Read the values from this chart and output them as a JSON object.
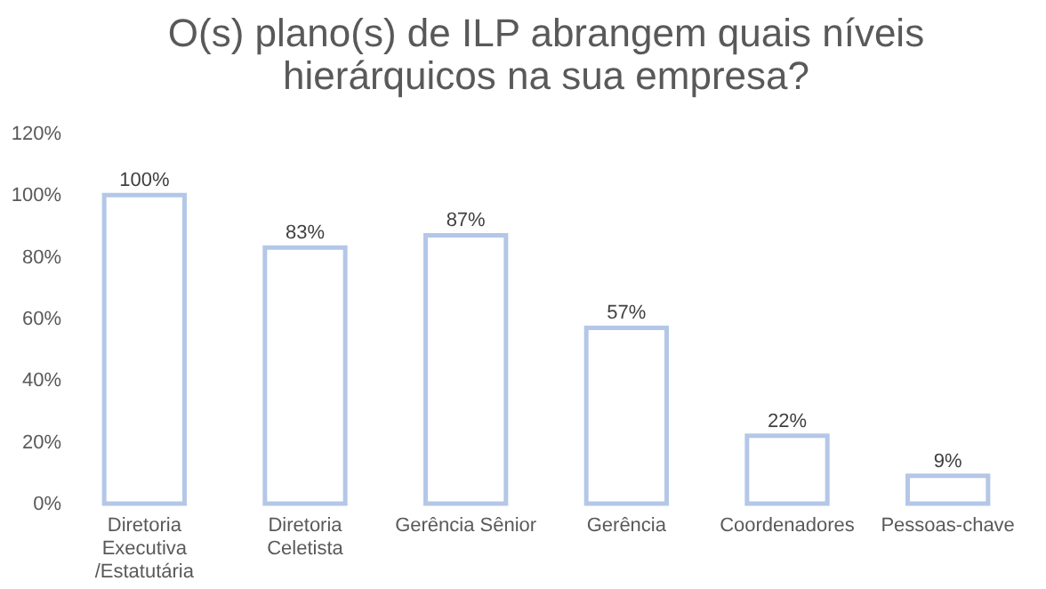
{
  "chart_data": {
    "type": "bar",
    "title": "O(s) plano(s) de ILP abrangem quais níveis hierárquicos na sua empresa?",
    "categories": [
      "Diretoria Executiva /Estatutária",
      "Diretoria Celetista",
      "Gerência Sênior",
      "Gerência",
      "Coordenadores",
      "Pessoas-chave"
    ],
    "values": [
      100,
      83,
      87,
      57,
      22,
      9
    ],
    "color": "#b4c7e7",
    "ylim": [
      0,
      120
    ],
    "yticks": [
      {
        "value": 0,
        "label": "0%"
      },
      {
        "value": 20,
        "label": "20%"
      },
      {
        "value": 40,
        "label": "40%"
      },
      {
        "value": 60,
        "label": "60%"
      },
      {
        "value": 80,
        "label": "80%"
      },
      {
        "value": 100,
        "label": "100%"
      },
      {
        "value": 120,
        "label": "120%"
      }
    ],
    "value_labels": [
      "100%",
      "83%",
      "87%",
      "57%",
      "22%",
      "9%"
    ],
    "grid": false
  }
}
